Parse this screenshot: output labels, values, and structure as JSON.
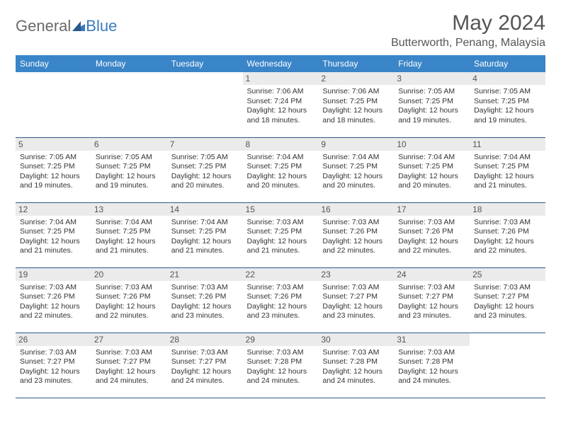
{
  "logo": {
    "general": "General",
    "blue": "Blue"
  },
  "title": "May 2024",
  "location": "Butterworth, Penang, Malaysia",
  "header_bg": "#3a85c8",
  "border_color": "#2a5a8a",
  "dayband_bg": "#ebebeb",
  "dow": [
    "Sunday",
    "Monday",
    "Tuesday",
    "Wednesday",
    "Thursday",
    "Friday",
    "Saturday"
  ],
  "weeks": [
    [
      null,
      null,
      null,
      {
        "n": "1",
        "sr": "Sunrise: 7:06 AM",
        "ss": "Sunset: 7:24 PM",
        "d1": "Daylight: 12 hours",
        "d2": "and 18 minutes."
      },
      {
        "n": "2",
        "sr": "Sunrise: 7:06 AM",
        "ss": "Sunset: 7:25 PM",
        "d1": "Daylight: 12 hours",
        "d2": "and 18 minutes."
      },
      {
        "n": "3",
        "sr": "Sunrise: 7:05 AM",
        "ss": "Sunset: 7:25 PM",
        "d1": "Daylight: 12 hours",
        "d2": "and 19 minutes."
      },
      {
        "n": "4",
        "sr": "Sunrise: 7:05 AM",
        "ss": "Sunset: 7:25 PM",
        "d1": "Daylight: 12 hours",
        "d2": "and 19 minutes."
      }
    ],
    [
      {
        "n": "5",
        "sr": "Sunrise: 7:05 AM",
        "ss": "Sunset: 7:25 PM",
        "d1": "Daylight: 12 hours",
        "d2": "and 19 minutes."
      },
      {
        "n": "6",
        "sr": "Sunrise: 7:05 AM",
        "ss": "Sunset: 7:25 PM",
        "d1": "Daylight: 12 hours",
        "d2": "and 19 minutes."
      },
      {
        "n": "7",
        "sr": "Sunrise: 7:05 AM",
        "ss": "Sunset: 7:25 PM",
        "d1": "Daylight: 12 hours",
        "d2": "and 20 minutes."
      },
      {
        "n": "8",
        "sr": "Sunrise: 7:04 AM",
        "ss": "Sunset: 7:25 PM",
        "d1": "Daylight: 12 hours",
        "d2": "and 20 minutes."
      },
      {
        "n": "9",
        "sr": "Sunrise: 7:04 AM",
        "ss": "Sunset: 7:25 PM",
        "d1": "Daylight: 12 hours",
        "d2": "and 20 minutes."
      },
      {
        "n": "10",
        "sr": "Sunrise: 7:04 AM",
        "ss": "Sunset: 7:25 PM",
        "d1": "Daylight: 12 hours",
        "d2": "and 20 minutes."
      },
      {
        "n": "11",
        "sr": "Sunrise: 7:04 AM",
        "ss": "Sunset: 7:25 PM",
        "d1": "Daylight: 12 hours",
        "d2": "and 21 minutes."
      }
    ],
    [
      {
        "n": "12",
        "sr": "Sunrise: 7:04 AM",
        "ss": "Sunset: 7:25 PM",
        "d1": "Daylight: 12 hours",
        "d2": "and 21 minutes."
      },
      {
        "n": "13",
        "sr": "Sunrise: 7:04 AM",
        "ss": "Sunset: 7:25 PM",
        "d1": "Daylight: 12 hours",
        "d2": "and 21 minutes."
      },
      {
        "n": "14",
        "sr": "Sunrise: 7:04 AM",
        "ss": "Sunset: 7:25 PM",
        "d1": "Daylight: 12 hours",
        "d2": "and 21 minutes."
      },
      {
        "n": "15",
        "sr": "Sunrise: 7:03 AM",
        "ss": "Sunset: 7:25 PM",
        "d1": "Daylight: 12 hours",
        "d2": "and 21 minutes."
      },
      {
        "n": "16",
        "sr": "Sunrise: 7:03 AM",
        "ss": "Sunset: 7:26 PM",
        "d1": "Daylight: 12 hours",
        "d2": "and 22 minutes."
      },
      {
        "n": "17",
        "sr": "Sunrise: 7:03 AM",
        "ss": "Sunset: 7:26 PM",
        "d1": "Daylight: 12 hours",
        "d2": "and 22 minutes."
      },
      {
        "n": "18",
        "sr": "Sunrise: 7:03 AM",
        "ss": "Sunset: 7:26 PM",
        "d1": "Daylight: 12 hours",
        "d2": "and 22 minutes."
      }
    ],
    [
      {
        "n": "19",
        "sr": "Sunrise: 7:03 AM",
        "ss": "Sunset: 7:26 PM",
        "d1": "Daylight: 12 hours",
        "d2": "and 22 minutes."
      },
      {
        "n": "20",
        "sr": "Sunrise: 7:03 AM",
        "ss": "Sunset: 7:26 PM",
        "d1": "Daylight: 12 hours",
        "d2": "and 22 minutes."
      },
      {
        "n": "21",
        "sr": "Sunrise: 7:03 AM",
        "ss": "Sunset: 7:26 PM",
        "d1": "Daylight: 12 hours",
        "d2": "and 23 minutes."
      },
      {
        "n": "22",
        "sr": "Sunrise: 7:03 AM",
        "ss": "Sunset: 7:26 PM",
        "d1": "Daylight: 12 hours",
        "d2": "and 23 minutes."
      },
      {
        "n": "23",
        "sr": "Sunrise: 7:03 AM",
        "ss": "Sunset: 7:27 PM",
        "d1": "Daylight: 12 hours",
        "d2": "and 23 minutes."
      },
      {
        "n": "24",
        "sr": "Sunrise: 7:03 AM",
        "ss": "Sunset: 7:27 PM",
        "d1": "Daylight: 12 hours",
        "d2": "and 23 minutes."
      },
      {
        "n": "25",
        "sr": "Sunrise: 7:03 AM",
        "ss": "Sunset: 7:27 PM",
        "d1": "Daylight: 12 hours",
        "d2": "and 23 minutes."
      }
    ],
    [
      {
        "n": "26",
        "sr": "Sunrise: 7:03 AM",
        "ss": "Sunset: 7:27 PM",
        "d1": "Daylight: 12 hours",
        "d2": "and 23 minutes."
      },
      {
        "n": "27",
        "sr": "Sunrise: 7:03 AM",
        "ss": "Sunset: 7:27 PM",
        "d1": "Daylight: 12 hours",
        "d2": "and 24 minutes."
      },
      {
        "n": "28",
        "sr": "Sunrise: 7:03 AM",
        "ss": "Sunset: 7:27 PM",
        "d1": "Daylight: 12 hours",
        "d2": "and 24 minutes."
      },
      {
        "n": "29",
        "sr": "Sunrise: 7:03 AM",
        "ss": "Sunset: 7:28 PM",
        "d1": "Daylight: 12 hours",
        "d2": "and 24 minutes."
      },
      {
        "n": "30",
        "sr": "Sunrise: 7:03 AM",
        "ss": "Sunset: 7:28 PM",
        "d1": "Daylight: 12 hours",
        "d2": "and 24 minutes."
      },
      {
        "n": "31",
        "sr": "Sunrise: 7:03 AM",
        "ss": "Sunset: 7:28 PM",
        "d1": "Daylight: 12 hours",
        "d2": "and 24 minutes."
      },
      null
    ]
  ]
}
